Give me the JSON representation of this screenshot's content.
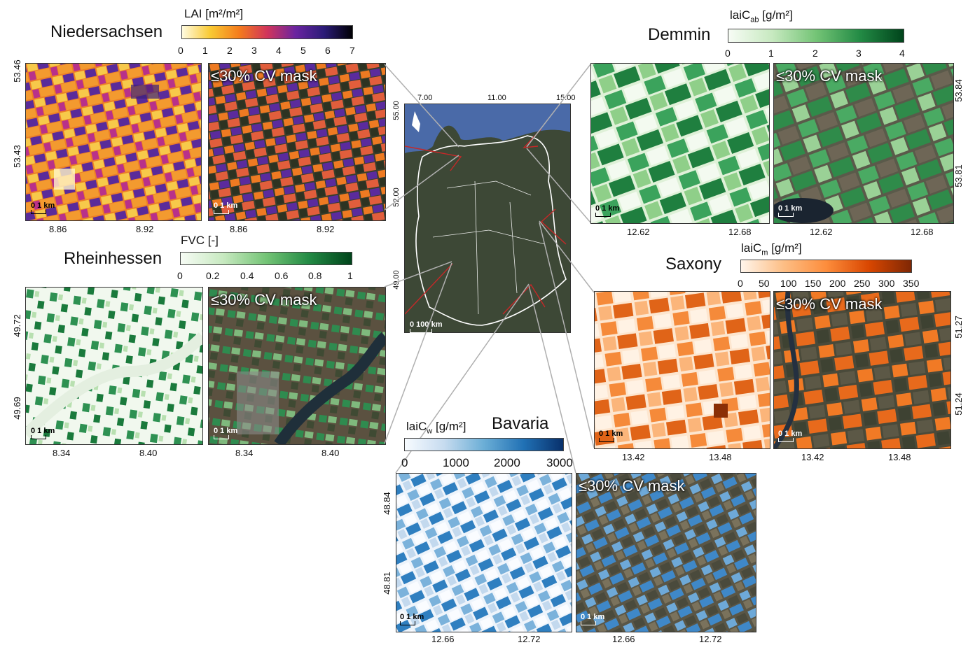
{
  "colors": {
    "lai": [
      "#fffbe0",
      "#f9c932",
      "#f47c1c",
      "#d1345b",
      "#6a24a0",
      "#2b1b78",
      "#000004"
    ],
    "cab": [
      "#f7fcf5",
      "#c7e9c0",
      "#74c476",
      "#238b45",
      "#00441b"
    ],
    "fvc": [
      "#f7fcf5",
      "#c7e9c0",
      "#74c476",
      "#238b45",
      "#00441b"
    ],
    "cm": [
      "#fff5eb",
      "#fdbe85",
      "#fd8d3c",
      "#d94701",
      "#7f2704"
    ],
    "cw": [
      "#f7fbff",
      "#c6dbef",
      "#6baed6",
      "#2171b5",
      "#08306b"
    ],
    "link": "#b0b0b0",
    "arrow": "#c62828"
  },
  "niedersachsen": {
    "region": "Niedersachsen",
    "unit": "LAI [m²/m²]",
    "ticks": [
      "0",
      "1",
      "2",
      "3",
      "4",
      "5",
      "6",
      "7"
    ],
    "y_coords": [
      "53.46",
      "53.43"
    ],
    "x_coords_left": [
      "8.86",
      "8.92"
    ],
    "x_coords_right": [
      "8.86",
      "8.92"
    ],
    "mask": "≤30% CV mask",
    "scale": "0    1 km"
  },
  "demmin": {
    "region": "Demmin",
    "unit": "laiC",
    "unit_sub": "ab",
    "unit_rest": " [g/m²]",
    "ticks": [
      "0",
      "1",
      "2",
      "3",
      "4"
    ],
    "y_coords": [
      "53.84",
      "53.81"
    ],
    "x_coords_left": [
      "12.62",
      "12.68"
    ],
    "x_coords_right": [
      "12.62",
      "12.68"
    ],
    "mask": "≤30% CV mask",
    "scale": "0    1 km"
  },
  "rheinhessen": {
    "region": "Rheinhessen",
    "unit": "FVC [-]",
    "ticks": [
      "0",
      "0.2",
      "0.4",
      "0.6",
      "0.8",
      "1"
    ],
    "y_coords": [
      "49.72",
      "49.69"
    ],
    "x_coords_left": [
      "8.34",
      "8.40"
    ],
    "x_coords_right": [
      "8.34",
      "8.40"
    ],
    "mask": "≤30% CV mask",
    "scale": "0    1 km"
  },
  "saxony": {
    "region": "Saxony",
    "unit": "laiC",
    "unit_sub": "m",
    "unit_rest": " [g/m²]",
    "ticks": [
      "0",
      "50",
      "100",
      "150",
      "200",
      "250",
      "300",
      "350"
    ],
    "y_coords": [
      "51.27",
      "51.24"
    ],
    "x_coords_left": [
      "13.42",
      "13.48"
    ],
    "x_coords_right": [
      "13.42",
      "13.48"
    ],
    "mask": "≤30% CV mask",
    "scale": "0    1 km"
  },
  "bavaria": {
    "region": "Bavaria",
    "unit": "laiC",
    "unit_sub": "w",
    "unit_rest": " [g/m²]",
    "ticks": [
      "0",
      "1000",
      "2000",
      "3000"
    ],
    "y_coords": [
      "48.84",
      "48.81"
    ],
    "x_coords_left": [
      "12.66",
      "12.72"
    ],
    "x_coords_right": [
      "12.66",
      "12.72"
    ],
    "mask": "≤30% CV mask",
    "scale": "0    1 km"
  },
  "germany": {
    "top_ticks": [
      "7.00",
      "11.00",
      "15.00"
    ],
    "left_ticks": [
      "55.00",
      "52.00",
      "49.00"
    ],
    "scale": "0    100 km"
  }
}
